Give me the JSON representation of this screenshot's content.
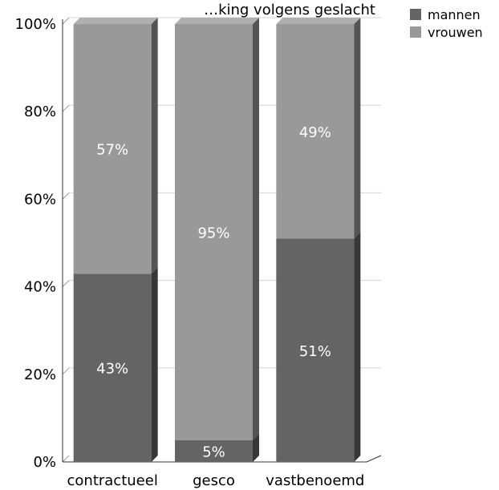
{
  "chart_data": {
    "type": "bar",
    "stacked": true,
    "percent": true,
    "title": "…king volgens geslacht",
    "categories": [
      "contractueel",
      "gesco",
      "vastbenoemd"
    ],
    "series": [
      {
        "name": "mannen",
        "values": [
          43,
          5,
          51
        ],
        "color": "#646464"
      },
      {
        "name": "vrouwen",
        "values": [
          57,
          95,
          49
        ],
        "color": "#999999"
      }
    ],
    "ylim": [
      0,
      100
    ],
    "y_ticks": [
      "0%",
      "20%",
      "40%",
      "60%",
      "80%",
      "100%"
    ],
    "data_labels": [
      [
        "43%",
        "5%",
        "51%"
      ],
      [
        "57%",
        "95%",
        "49%"
      ]
    ],
    "grid": true,
    "legend_position": "top-right"
  }
}
